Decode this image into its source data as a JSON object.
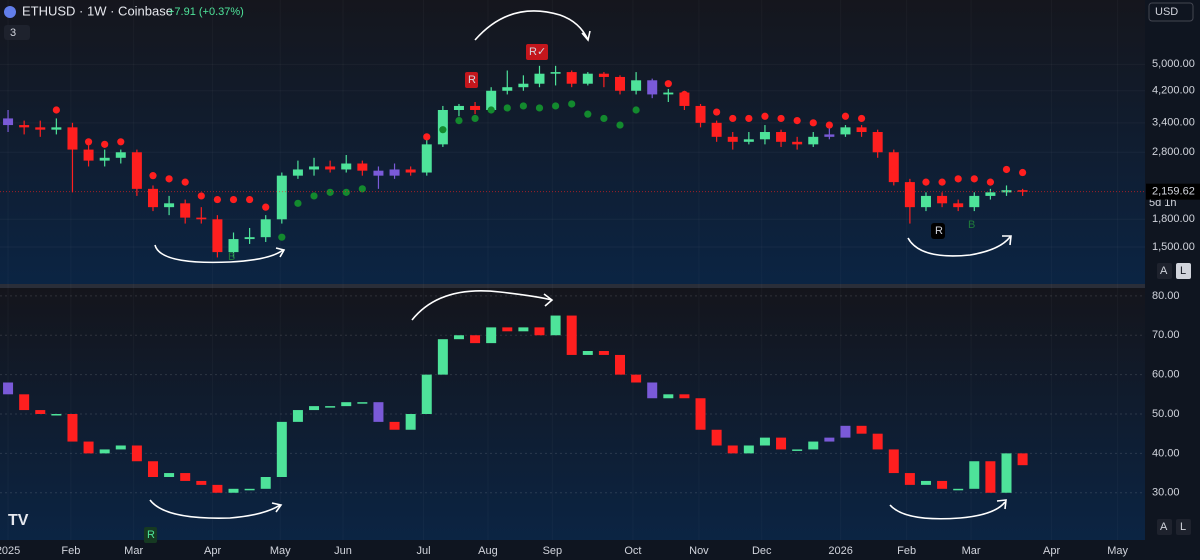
{
  "header": {
    "symbol": "ETHUSD · 1W · Coinbase",
    "change": "+7.91 (+0.37%)",
    "indicator_count": "3",
    "currency": "USD",
    "countdown": "5d 1h"
  },
  "buttons": {
    "top": [
      "A",
      "L"
    ],
    "bottom": [
      "A",
      "L"
    ]
  },
  "annotations": {
    "r1": "R",
    "r2": "R✓",
    "r3": "R",
    "b1": "B",
    "b2": "B",
    "r4": "R"
  },
  "chart_data": [
    {
      "type": "candlestick",
      "log_scale": true,
      "ylim": [
        1175,
        7640
      ],
      "yticks": [
        {
          "value": 1500,
          "label": "1,500.00"
        },
        {
          "value": 1800,
          "label": "1,800.00"
        },
        {
          "value": 2800,
          "label": "2,800.00"
        },
        {
          "value": 3400,
          "label": "3,400.00"
        },
        {
          "value": 4200,
          "label": "4,200.00"
        },
        {
          "value": 5000,
          "label": "5,000.00"
        }
      ],
      "xlim": [
        -0.5,
        70.6
      ],
      "xticks": [
        {
          "value": 0,
          "label": "2025"
        },
        {
          "value": 3.9,
          "label": "Feb"
        },
        {
          "value": 7.8,
          "label": "Mar"
        },
        {
          "value": 12.7,
          "label": "Apr"
        },
        {
          "value": 16.9,
          "label": "May"
        },
        {
          "value": 20.8,
          "label": "Jun"
        },
        {
          "value": 25.8,
          "label": "Jul"
        },
        {
          "value": 29.8,
          "label": "Aug"
        },
        {
          "value": 33.8,
          "label": "Sep"
        },
        {
          "value": 38.8,
          "label": "Oct"
        },
        {
          "value": 42.9,
          "label": "Nov"
        },
        {
          "value": 46.8,
          "label": "Dec"
        },
        {
          "value": 51.7,
          "label": "2026"
        },
        {
          "value": 55.8,
          "label": "Feb"
        },
        {
          "value": 59.8,
          "label": "Mar"
        },
        {
          "value": 64.8,
          "label": "Apr"
        },
        {
          "value": 68.9,
          "label": "May"
        }
      ],
      "colors": {
        "up": "#4ee39a",
        "down": "#ff1f1f",
        "neutral": "#7a5ad8"
      },
      "neutral_index": [
        0,
        23,
        24,
        40,
        51
      ],
      "open": [
        3500,
        3350,
        3300,
        3250,
        3300,
        2850,
        2650,
        2700,
        2800,
        2200,
        1950,
        2000,
        1820,
        1800,
        1450,
        1580,
        1600,
        1800,
        2400,
        2500,
        2550,
        2500,
        2600,
        2480,
        2400,
        2500,
        2450,
        2950,
        3700,
        3800,
        3700,
        4200,
        4300,
        4400,
        4700,
        4750,
        4400,
        4700,
        4600,
        4200,
        4500,
        4100,
        4150,
        3800,
        3400,
        3100,
        3000,
        3050,
        3200,
        3000,
        2950,
        3100,
        3150,
        3300,
        3200,
        2800,
        2300,
        1950,
        2100,
        2000,
        1950,
        2100,
        2150,
        2180
      ],
      "high": [
        3700,
        3450,
        3450,
        3500,
        3400,
        2950,
        2850,
        2850,
        2850,
        2250,
        2100,
        2050,
        1950,
        1850,
        1650,
        1700,
        1850,
        2450,
        2650,
        2700,
        2650,
        2750,
        2650,
        2550,
        2600,
        2550,
        3050,
        3800,
        3850,
        3900,
        4300,
        4800,
        4650,
        4950,
        4950,
        4800,
        4750,
        4750,
        4650,
        4750,
        4550,
        4250,
        4200,
        3850,
        3450,
        3200,
        3200,
        3350,
        3250,
        3100,
        3200,
        3300,
        3350,
        3350,
        3250,
        2850,
        2350,
        2150,
        2150,
        2050,
        2150,
        2200,
        2250,
        2200
      ],
      "low": [
        3200,
        3150,
        3100,
        3150,
        2150,
        2550,
        2550,
        2600,
        2100,
        1900,
        1850,
        1750,
        1750,
        1400,
        1400,
        1530,
        1550,
        1750,
        2350,
        2400,
        2450,
        2450,
        2400,
        2200,
        2350,
        2400,
        2400,
        2900,
        3550,
        3600,
        3650,
        4100,
        4200,
        4300,
        4350,
        4300,
        4350,
        4300,
        4100,
        4100,
        4000,
        3900,
        3700,
        3300,
        3000,
        2850,
        2950,
        2950,
        2900,
        2850,
        2900,
        3050,
        3100,
        3100,
        2700,
        2250,
        1750,
        1900,
        1950,
        1900,
        1900,
        2050,
        2100,
        2100
      ],
      "close": [
        3350,
        3300,
        3250,
        3300,
        2850,
        2650,
        2700,
        2800,
        2200,
        1950,
        2000,
        1820,
        1800,
        1450,
        1580,
        1600,
        1800,
        2400,
        2500,
        2550,
        2500,
        2600,
        2480,
        2400,
        2500,
        2450,
        2950,
        3700,
        3800,
        3700,
        4200,
        4300,
        4400,
        4700,
        4750,
        4400,
        4700,
        4600,
        4200,
        4500,
        4100,
        4150,
        3800,
        3400,
        3100,
        3000,
        3050,
        3200,
        3000,
        2950,
        3100,
        3150,
        3300,
        3200,
        2800,
        2300,
        1950,
        2100,
        2000,
        1950,
        2100,
        2150,
        2180,
        2160
      ],
      "dots": [
        null,
        null,
        null,
        3700,
        null,
        3000,
        2950,
        3000,
        2650,
        2400,
        2350,
        2300,
        2100,
        2050,
        2050,
        2050,
        1950,
        1600,
        2000,
        2100,
        2150,
        2150,
        2200,
        null,
        null,
        null,
        3100,
        3250,
        3450,
        3500,
        3700,
        3750,
        3800,
        3750,
        3800,
        3850,
        3600,
        3500,
        3350,
        3700,
        null,
        4400,
        4100,
        3650,
        3650,
        3500,
        3500,
        3550,
        3500,
        3450,
        3400,
        3350,
        3550,
        3500,
        null,
        2500,
        2250,
        2300,
        2300,
        2350,
        2350,
        2300,
        2500,
        2450
      ],
      "last_price": {
        "value": 2159.62,
        "label": "2,159.62"
      }
    },
    {
      "type": "candlestick",
      "ylim": [
        18,
        82
      ],
      "yticks": [
        {
          "value": 30,
          "label": "30.00"
        },
        {
          "value": 40,
          "label": "40.00"
        },
        {
          "value": 50,
          "label": "50.00"
        },
        {
          "value": 60,
          "label": "60.00"
        },
        {
          "value": 70,
          "label": "70.00"
        },
        {
          "value": 80,
          "label": "80.00"
        }
      ],
      "xlim": [
        -0.5,
        70.6
      ],
      "neutral_index": [
        0,
        23,
        40,
        51,
        52
      ],
      "open": [
        58,
        55,
        51,
        50,
        50,
        43,
        40,
        41,
        42,
        38,
        34,
        35,
        33,
        32,
        30,
        31,
        31,
        34,
        48,
        51,
        52,
        52,
        53,
        53,
        48,
        46,
        50,
        60,
        69,
        70,
        68,
        72,
        71,
        72,
        70,
        75,
        65,
        66,
        65,
        60,
        58,
        54,
        55,
        54,
        46,
        42,
        40,
        42,
        44,
        41,
        41,
        43,
        44,
        47,
        45,
        41,
        35,
        32,
        33,
        31,
        31,
        38,
        30,
        40
      ],
      "close": [
        55,
        51,
        50,
        50,
        43,
        40,
        41,
        42,
        38,
        34,
        35,
        33,
        32,
        30,
        31,
        31,
        34,
        48,
        51,
        52,
        52,
        53,
        53,
        48,
        46,
        50,
        60,
        69,
        70,
        68,
        72,
        71,
        72,
        70,
        75,
        65,
        66,
        65,
        60,
        58,
        54,
        55,
        54,
        46,
        42,
        40,
        42,
        44,
        41,
        41,
        43,
        44,
        47,
        45,
        41,
        35,
        32,
        33,
        31,
        31,
        38,
        30,
        40,
        37
      ]
    }
  ]
}
